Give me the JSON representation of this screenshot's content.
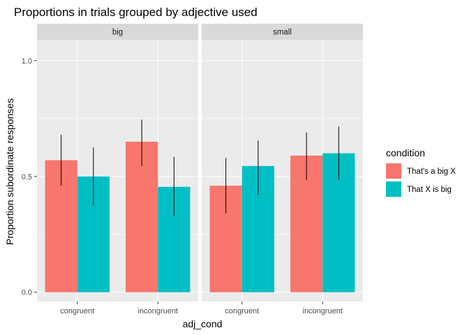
{
  "chart_data": {
    "type": "bar",
    "title": "Proportions in trials grouped by adjective used",
    "xlabel": "adj_cond",
    "ylabel": "Proportion subordinate responses",
    "ylim": [
      -0.04,
      1.09
    ],
    "yticks": [
      "0.0",
      "0.5",
      "1.0"
    ],
    "ytick_values": [
      0.0,
      0.5,
      1.0
    ],
    "grid": true,
    "facet_variable": "adjective",
    "facets": [
      "big",
      "small"
    ],
    "categories": [
      "congruent",
      "incongruent"
    ],
    "legend": {
      "title": "condition",
      "position": "right"
    },
    "series": [
      {
        "name": "That's a big X",
        "color": "#F8766D",
        "values": {
          "big": [
            0.57,
            0.65
          ],
          "small": [
            0.46,
            0.59
          ]
        },
        "error_low": {
          "big": [
            0.46,
            0.545
          ],
          "small": [
            0.34,
            0.485
          ]
        },
        "error_high": {
          "big": [
            0.68,
            0.745
          ],
          "small": [
            0.58,
            0.69
          ]
        }
      },
      {
        "name": "That X is big",
        "color": "#00BFC4",
        "values": {
          "big": [
            0.5,
            0.455
          ],
          "small": [
            0.545,
            0.6
          ]
        },
        "error_low": {
          "big": [
            0.375,
            0.33
          ],
          "small": [
            0.42,
            0.485
          ]
        },
        "error_high": {
          "big": [
            0.625,
            0.585
          ],
          "small": [
            0.655,
            0.715
          ]
        }
      }
    ]
  }
}
